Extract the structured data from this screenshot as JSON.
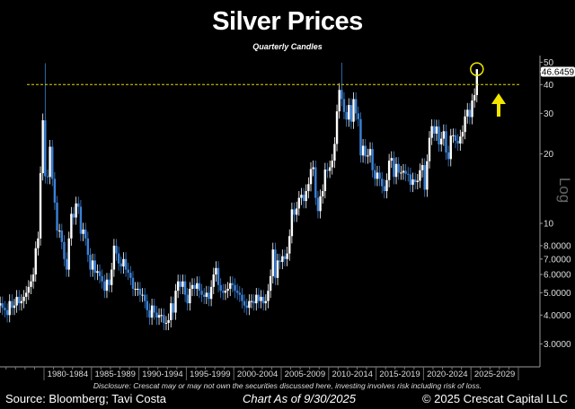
{
  "chart_data": {
    "type": "candlestick",
    "title": "Silver Prices",
    "subtitle": "Quarterly Candles",
    "y_scale": "log",
    "y_scale_label": "Log",
    "ylim": [
      2.6,
      52
    ],
    "y_ticks": [
      "50",
      "40",
      "30",
      "20",
      "10",
      "8.0000",
      "7.0000",
      "6.0000",
      "5.0000",
      "4.0000",
      "3.0000"
    ],
    "y_tick_values": [
      50,
      40,
      30,
      20,
      10,
      8,
      7,
      6,
      5,
      4,
      3
    ],
    "x_tick_labels": [
      "1980-1984",
      "1985-1989",
      "1990-1994",
      "1995-1999",
      "2000-2004",
      "2005-2009",
      "2010-2014",
      "2015-2019",
      "2020-2024",
      "2025-2029"
    ],
    "x_range": [
      "1975-Q1",
      "2029-Q4"
    ],
    "start_quarter": "1975-Q1",
    "closes": [
      4.4,
      4.5,
      4.3,
      4.2,
      4.0,
      4.6,
      4.3,
      4.4,
      4.8,
      4.5,
      4.6,
      4.8,
      5.0,
      5.3,
      5.6,
      6.0,
      7.8,
      8.6,
      16.5,
      28.0,
      16.0,
      15.9,
      21.5,
      15.6,
      12.3,
      9.3,
      9.3,
      8.3,
      7.0,
      6.3,
      8.6,
      11.0,
      10.6,
      12.2,
      11.8,
      9.0,
      9.4,
      8.6,
      7.3,
      6.3,
      6.9,
      6.1,
      6.2,
      5.9,
      5.6,
      5.1,
      5.7,
      5.4,
      6.3,
      8.0,
      7.4,
      6.7,
      6.5,
      7.0,
      6.3,
      6.1,
      5.8,
      5.2,
      5.2,
      5.2,
      4.9,
      4.9,
      4.6,
      4.2,
      3.9,
      4.4,
      4.1,
      3.9,
      4.0,
      4.0,
      3.7,
      3.7,
      3.8,
      4.5,
      4.1,
      5.1,
      5.6,
      5.3,
      5.6,
      4.9,
      4.5,
      5.2,
      5.4,
      5.2,
      5.5,
      5.1,
      4.9,
      4.8,
      5.0,
      4.7,
      5.3,
      6.0,
      6.4,
      5.4,
      5.1,
      5.0,
      5.1,
      5.2,
      5.5,
      5.4,
      5.1,
      5.0,
      4.9,
      4.6,
      4.4,
      4.3,
      4.6,
      4.6,
      4.5,
      4.9,
      4.6,
      4.8,
      4.5,
      4.6,
      5.1,
      5.9,
      7.7,
      5.8,
      6.9,
      6.8,
      7.2,
      7.0,
      7.4,
      8.8,
      11.5,
      10.9,
      11.6,
      12.9,
      13.3,
      12.5,
      13.8,
      14.8,
      17.2,
      17.5,
      12.9,
      11.3,
      13.1,
      13.8,
      17.1,
      16.9,
      17.5,
      18.7,
      22.1,
      30.6,
      37.9,
      34.6,
      30.4,
      28.2,
      32.6,
      27.6,
      34.6,
      30.0,
      28.3,
      19.7,
      21.7,
      19.5,
      19.7,
      21.0,
      17.0,
      15.6,
      16.6,
      15.6,
      14.5,
      13.8,
      15.4,
      18.7,
      19.2,
      15.9,
      18.1,
      16.6,
      16.6,
      16.9,
      16.4,
      16.3,
      14.7,
      15.5,
      15.1,
      15.3,
      17.0,
      17.9,
      14.0,
      18.6,
      23.5,
      26.4,
      24.5,
      26.3,
      22.0,
      23.3,
      25.1,
      20.3,
      19.0,
      24.0,
      24.1,
      22.8,
      22.2,
      23.8,
      24.9,
      29.1,
      31.1,
      28.9,
      34.1,
      36.0,
      46.6459
    ],
    "notable_highs": [
      {
        "quarter": "1980-Q1",
        "high": 49.5
      },
      {
        "quarter": "2011-Q2",
        "high": 49.8
      }
    ],
    "last_value_label": "46.6459",
    "reference_line": {
      "value": 40,
      "style": "dashed",
      "color": "#e8d800"
    },
    "annotations": [
      "circle around latest high",
      "yellow up arrow"
    ],
    "colors": {
      "up": "#ffffff",
      "down": "#3b82d8",
      "highlight": "#f2e600",
      "axis": "#9a9a9a"
    },
    "grid": false
  },
  "footer": {
    "disclosure": "Disclosure: Crescat may or may not own the securities discussed here, investing involves risk including risk of loss.",
    "source": "Source: Bloomberg; Tavi Costa",
    "as_of": "Chart As of 9/30/2025",
    "copyright": "© 2025 Crescat Capital LLC"
  }
}
